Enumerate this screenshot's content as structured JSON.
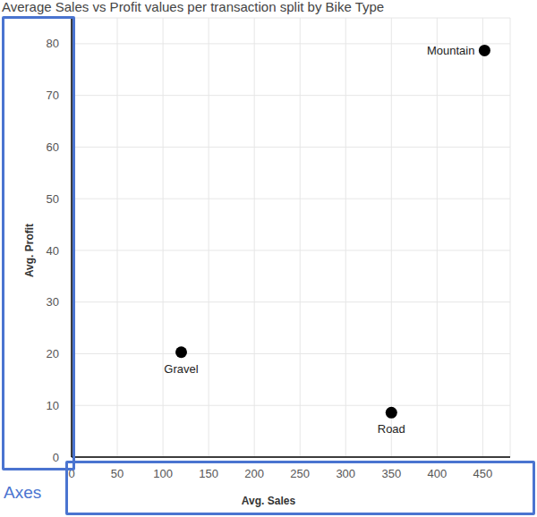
{
  "chart_data": {
    "type": "scatter",
    "title": "Average Sales vs Profit values per transaction split by Bike Type",
    "x_label": "Avg. Sales",
    "y_label": "Avg. Profit",
    "categories": [
      "Gravel",
      "Road",
      "Mountain"
    ],
    "x": [
      120,
      350,
      452
    ],
    "values": [
      20.3,
      8.6,
      78.7
    ],
    "color": "#000000",
    "xlim": [
      0,
      480
    ],
    "xticks": [
      0,
      50,
      100,
      150,
      200,
      250,
      300,
      350,
      400,
      450
    ],
    "ylim": [
      0,
      85
    ],
    "yticks": [
      0,
      10,
      20,
      30,
      40,
      50,
      60,
      70,
      80
    ],
    "grid": true,
    "annotation": "Axes"
  }
}
